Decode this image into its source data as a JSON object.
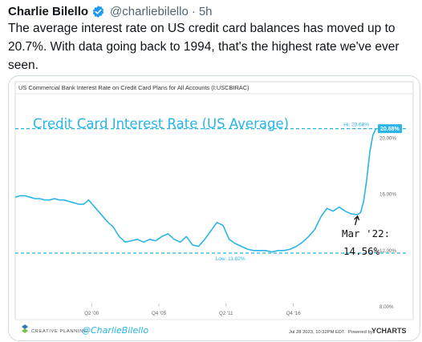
{
  "tweet": {
    "author_name": "Charlie Bilello",
    "handle": "@charliebilello",
    "separator": "·",
    "time": "5h",
    "text": "The average interest rate on US credit card balances has moved up to 20.7%. With data going back to 1994, that's the highest rate we've ever seen."
  },
  "colors": {
    "line": "#29b5e8",
    "dashed": "#29b5e8",
    "badge": "#29b5e8",
    "handwriting": "#29b5e8",
    "ink": "#111111"
  },
  "chart_header": "US Commercial Bank Interest Rate on Credit Card Plans for All Accounts (I:USCBIRAC)",
  "chart_data": {
    "type": "line",
    "title": "Credit Card Interest Rate (US Average)",
    "x": [
      1994.0,
      1994.4,
      1994.8,
      1995.2,
      1995.6,
      1996.0,
      1996.4,
      1996.8,
      1997.2,
      1997.6,
      1998.0,
      1998.4,
      1998.8,
      1999.2,
      1999.6,
      2000.0,
      2000.4,
      2000.8,
      2001.2,
      2001.6,
      2002.0,
      2002.5,
      2003.0,
      2003.5,
      2004.0,
      2004.5,
      2005.0,
      2005.5,
      2006.0,
      2006.5,
      2007.0,
      2007.5,
      2008.0,
      2008.5,
      2009.0,
      2009.5,
      2010.0,
      2010.5,
      2011.0,
      2011.5,
      2012.0,
      2012.5,
      2013.0,
      2013.5,
      2014.0,
      2014.5,
      2015.0,
      2015.5,
      2016.0,
      2016.5,
      2017.0,
      2017.5,
      2018.0,
      2018.5,
      2019.0,
      2019.5,
      2020.0,
      2020.5,
      2021.0,
      2021.5,
      2022.0,
      2022.25,
      2022.5,
      2022.75,
      2023.0,
      2023.25,
      2023.5
    ],
    "y": [
      15.8,
      15.9,
      15.9,
      15.8,
      15.7,
      15.7,
      15.6,
      15.6,
      15.7,
      15.6,
      15.6,
      15.5,
      15.4,
      15.3,
      15.3,
      15.6,
      15.2,
      14.8,
      14.4,
      14.0,
      13.7,
      13.0,
      12.6,
      12.7,
      12.8,
      12.6,
      12.8,
      12.7,
      13.0,
      13.2,
      12.8,
      12.6,
      13.0,
      12.4,
      12.3,
      12.8,
      13.4,
      14.0,
      13.8,
      12.8,
      12.5,
      12.3,
      12.1,
      12.0,
      12.0,
      12.0,
      11.9,
      12.0,
      12.0,
      12.1,
      12.3,
      12.6,
      13.0,
      13.5,
      14.4,
      15.0,
      14.8,
      15.1,
      14.8,
      14.6,
      14.56,
      14.7,
      15.5,
      17.0,
      19.0,
      20.2,
      20.68
    ],
    "xlabel": "",
    "ylabel": "",
    "xlim": [
      1994,
      2023.6
    ],
    "ylim": [
      8,
      21
    ],
    "y_ticks": [
      "8.00%",
      "12.00%",
      "16.00%",
      "20.00%"
    ],
    "y_tick_values": [
      8,
      12,
      16,
      20
    ],
    "x_ticks": [
      "Q2 '00",
      "Q4 '05",
      "Q2 '11",
      "Q4 '16"
    ],
    "x_tick_values": [
      2000.25,
      2005.75,
      2011.25,
      2016.75
    ],
    "hi_value": 20.68,
    "hi_label": "Hi: 20.68%",
    "low_value": 11.82,
    "low_label": "Low: 11.82%",
    "last_value_label": "20.68%",
    "annotation": [
      "Mar '22:",
      "14.56%"
    ],
    "grid": false,
    "legend": "none"
  },
  "footer": {
    "brand": "CREATIVE PLANNING",
    "signature": "@CharlieBilello",
    "timestamp": "Jul 28 2023, 10:32PM EDT.",
    "powered": "Powered by",
    "ycharts": "YCHARTS"
  }
}
